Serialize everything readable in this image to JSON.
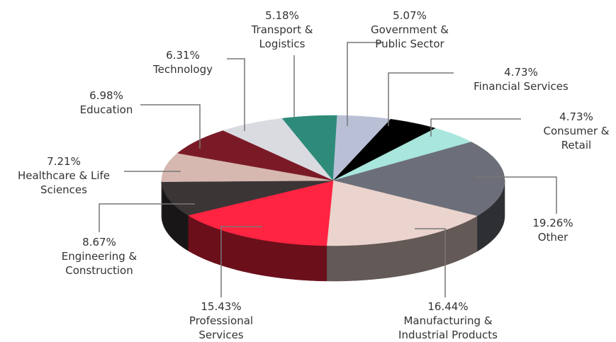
{
  "chart_data": {
    "type": "pie3d",
    "categories": [
      "Technology",
      "Transport & Logistics",
      "Government & Public Sector",
      "Financial Services",
      "Consumer & Retail",
      "Other",
      "Manufacturing & Industrial Products",
      "Professional Services",
      "Engineering & Construction",
      "Healthcare & Life Sciences",
      "Education"
    ],
    "values": [
      6.31,
      5.18,
      5.07,
      4.73,
      4.73,
      19.26,
      16.44,
      15.43,
      8.67,
      7.21,
      6.98
    ],
    "value_labels": [
      "6.31%",
      "5.18%",
      "5.07%",
      "4.73%",
      "4.73%",
      "19.26%",
      "16.44%",
      "15.43%",
      "8.67%",
      "7.21%",
      "6.98%"
    ],
    "colors": [
      "#d9dbe1",
      "#2e8b7a",
      "#b9c0d6",
      "#000000",
      "#a9e6dd",
      "#6c6f79",
      "#ebd4cd",
      "#ff2441",
      "#3b3536",
      "#d6b8b0",
      "#7b1a27"
    ]
  }
}
